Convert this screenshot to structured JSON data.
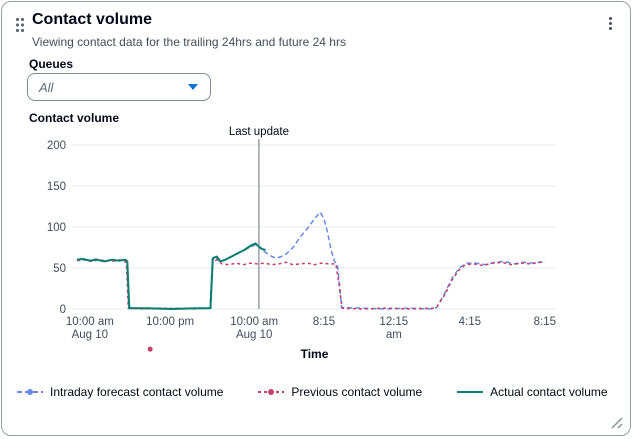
{
  "widget": {
    "title": "Contact volume",
    "subtitle": "Viewing contact data for the trailing 24hrs and future 24 hrs"
  },
  "queues": {
    "label": "Queues",
    "selected": "All"
  },
  "chart": {
    "label": "Contact volume",
    "time_axis_label": "Time"
  },
  "legend": [
    {
      "label": "Intraday forecast contact volume",
      "color": "#688ae8",
      "dash": "5 3",
      "dot": true
    },
    {
      "label": "Previous contact volume",
      "color": "#c33d69",
      "dash": "3 3",
      "dot": true
    },
    {
      "label": "Actual contact volume",
      "color": "#0d7d6e",
      "dash": "",
      "dot": false
    }
  ],
  "chart_data": {
    "type": "line",
    "title": "Contact volume",
    "xlabel": "Time",
    "ylabel": "",
    "ylim": [
      0,
      200
    ],
    "yticks": [
      0,
      50,
      100,
      150,
      200
    ],
    "grid": true,
    "legend_position": "bottom",
    "annotation": {
      "label": "Last update",
      "pos": 0.383
    },
    "xticks": [
      {
        "pos": 0.027,
        "label": "10:00 am",
        "label2": "Aug 10"
      },
      {
        "pos": 0.196,
        "label": "10:00 pm"
      },
      {
        "pos": 0.373,
        "label": "10:00 am",
        "label2": "Aug 10"
      },
      {
        "pos": 0.52,
        "label": "8:15"
      },
      {
        "pos": 0.667,
        "label": "12:15",
        "label2": "am"
      },
      {
        "pos": 0.827,
        "label": "4:15"
      },
      {
        "pos": 0.985,
        "label": "8:15"
      }
    ],
    "stray_point": {
      "pos": 0.154,
      "value": -49,
      "color": "#c33d69"
    },
    "series": [
      {
        "name": "Intraday forecast contact volume",
        "color": "#688ae8",
        "dash": "5 3",
        "width": 1.5,
        "points": [
          [
            0,
            60
          ],
          [
            0.01,
            61
          ],
          [
            0.025,
            59
          ],
          [
            0.04,
            61
          ],
          [
            0.055,
            58
          ],
          [
            0.07,
            60
          ],
          [
            0.085,
            59
          ],
          [
            0.1,
            60
          ],
          [
            0.105,
            58
          ],
          [
            0.109,
            2
          ],
          [
            0.13,
            1
          ],
          [
            0.17,
            0
          ],
          [
            0.21,
            1
          ],
          [
            0.25,
            0
          ],
          [
            0.28,
            1
          ],
          [
            0.285,
            60
          ],
          [
            0.292,
            63
          ],
          [
            0.3,
            58
          ],
          [
            0.31,
            60
          ],
          [
            0.32,
            62
          ],
          [
            0.33,
            65
          ],
          [
            0.34,
            68
          ],
          [
            0.35,
            71
          ],
          [
            0.36,
            74
          ],
          [
            0.37,
            77
          ],
          [
            0.378,
            79
          ],
          [
            0.386,
            74
          ],
          [
            0.393,
            70
          ],
          [
            0.4,
            68
          ],
          [
            0.41,
            64
          ],
          [
            0.42,
            62
          ],
          [
            0.43,
            64
          ],
          [
            0.44,
            67
          ],
          [
            0.455,
            75
          ],
          [
            0.47,
            88
          ],
          [
            0.485,
            98
          ],
          [
            0.5,
            110
          ],
          [
            0.512,
            118
          ],
          [
            0.52,
            110
          ],
          [
            0.528,
            92
          ],
          [
            0.535,
            72
          ],
          [
            0.542,
            58
          ],
          [
            0.548,
            55
          ],
          [
            0.553,
            28
          ],
          [
            0.557,
            2
          ],
          [
            0.6,
            1
          ],
          [
            0.65,
            0
          ],
          [
            0.7,
            1
          ],
          [
            0.75,
            0
          ],
          [
            0.757,
            2
          ],
          [
            0.775,
            20
          ],
          [
            0.79,
            38
          ],
          [
            0.805,
            50
          ],
          [
            0.82,
            56
          ],
          [
            0.84,
            56
          ],
          [
            0.86,
            54
          ],
          [
            0.88,
            57
          ],
          [
            0.9,
            58
          ],
          [
            0.92,
            55
          ],
          [
            0.94,
            57
          ],
          [
            0.96,
            56
          ],
          [
            0.985,
            58
          ]
        ]
      },
      {
        "name": "Previous contact volume",
        "color": "#c33d69",
        "dash": "3 3",
        "width": 1.5,
        "points": [
          [
            0,
            59
          ],
          [
            0.015,
            60
          ],
          [
            0.03,
            58
          ],
          [
            0.045,
            60
          ],
          [
            0.06,
            59
          ],
          [
            0.075,
            58
          ],
          [
            0.09,
            60
          ],
          [
            0.104,
            57
          ],
          [
            0.108,
            1
          ],
          [
            0.14,
            0
          ],
          [
            0.18,
            1
          ],
          [
            0.22,
            0
          ],
          [
            0.26,
            1
          ],
          [
            0.281,
            1
          ],
          [
            0.286,
            58
          ],
          [
            0.295,
            60
          ],
          [
            0.305,
            55
          ],
          [
            0.32,
            54
          ],
          [
            0.335,
            56
          ],
          [
            0.35,
            54
          ],
          [
            0.365,
            56
          ],
          [
            0.38,
            55
          ],
          [
            0.395,
            56
          ],
          [
            0.41,
            54
          ],
          [
            0.425,
            55
          ],
          [
            0.44,
            57
          ],
          [
            0.455,
            54
          ],
          [
            0.47,
            55
          ],
          [
            0.485,
            56
          ],
          [
            0.5,
            54
          ],
          [
            0.515,
            56
          ],
          [
            0.53,
            55
          ],
          [
            0.545,
            55
          ],
          [
            0.552,
            28
          ],
          [
            0.558,
            1
          ],
          [
            0.6,
            0
          ],
          [
            0.65,
            1
          ],
          [
            0.7,
            0
          ],
          [
            0.75,
            1
          ],
          [
            0.758,
            3
          ],
          [
            0.775,
            18
          ],
          [
            0.79,
            36
          ],
          [
            0.805,
            48
          ],
          [
            0.818,
            54
          ],
          [
            0.835,
            55
          ],
          [
            0.855,
            53
          ],
          [
            0.875,
            56
          ],
          [
            0.895,
            57
          ],
          [
            0.915,
            54
          ],
          [
            0.935,
            56
          ],
          [
            0.955,
            55
          ],
          [
            0.975,
            57
          ],
          [
            0.985,
            57
          ]
        ]
      },
      {
        "name": "Actual contact volume",
        "color": "#0d7d6e",
        "dash": "",
        "width": 2,
        "points": [
          [
            0,
            60
          ],
          [
            0.012,
            61
          ],
          [
            0.028,
            59
          ],
          [
            0.042,
            60
          ],
          [
            0.058,
            58
          ],
          [
            0.072,
            60
          ],
          [
            0.088,
            59
          ],
          [
            0.102,
            60
          ],
          [
            0.106,
            58
          ],
          [
            0.11,
            1
          ],
          [
            0.15,
            1
          ],
          [
            0.2,
            0
          ],
          [
            0.25,
            1
          ],
          [
            0.281,
            1
          ],
          [
            0.286,
            62
          ],
          [
            0.294,
            64
          ],
          [
            0.302,
            58
          ],
          [
            0.312,
            60
          ],
          [
            0.322,
            63
          ],
          [
            0.332,
            66
          ],
          [
            0.342,
            69
          ],
          [
            0.352,
            72
          ],
          [
            0.36,
            75
          ],
          [
            0.368,
            78
          ],
          [
            0.376,
            80
          ],
          [
            0.383,
            76
          ],
          [
            0.39,
            73
          ],
          [
            0.397,
            72
          ]
        ]
      }
    ]
  }
}
